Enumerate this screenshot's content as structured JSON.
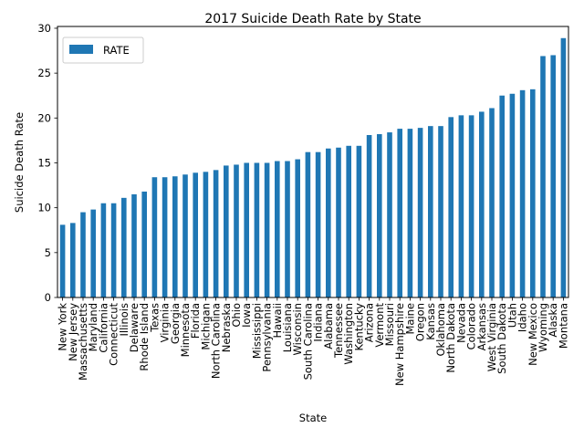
{
  "chart_data": {
    "type": "bar",
    "title": "2017 Suicide Death Rate by State",
    "xlabel": "State",
    "ylabel": "Suicide Death Rate",
    "ylim": [
      0,
      30.2
    ],
    "yticks": [
      0,
      5,
      10,
      15,
      20,
      25,
      30
    ],
    "grid": false,
    "legend_position": "upper-left",
    "bar_color": "#1f77b4",
    "series": [
      {
        "name": "RATE",
        "values": [
          8.1,
          8.3,
          9.5,
          9.8,
          10.5,
          10.5,
          11.1,
          11.5,
          11.8,
          13.4,
          13.4,
          13.5,
          13.7,
          13.9,
          14.0,
          14.2,
          14.7,
          14.8,
          15.0,
          15.0,
          15.0,
          15.2,
          15.2,
          15.4,
          16.2,
          16.2,
          16.6,
          16.7,
          16.9,
          16.9,
          18.1,
          18.2,
          18.4,
          18.8,
          18.8,
          18.9,
          19.1,
          19.1,
          20.1,
          20.3,
          20.3,
          20.7,
          21.1,
          22.5,
          22.7,
          23.1,
          23.2,
          26.9,
          27.0,
          28.9
        ]
      }
    ],
    "categories": [
      "New York",
      "New Jersey",
      "Massachusetts",
      "Maryland",
      "California",
      "Connecticut",
      "Illinois",
      "Delaware",
      "Rhode Island",
      "Texas",
      "Virginia",
      "Georgia",
      "Minnesota",
      "Florida",
      "Michigan",
      "North Carolina",
      "Nebraska",
      "Ohio",
      "Iowa",
      "Mississippi",
      "Pennsylvania",
      "Hawaii",
      "Louisiana",
      "Wisconsin",
      "South Carolina",
      "Indiana",
      "Alabama",
      "Tennessee",
      "Washington",
      "Kentucky",
      "Arizona",
      "Vermont",
      "Missouri",
      "New Hampshire",
      "Maine",
      "Oregon",
      "Kansas",
      "Oklahoma",
      "North Dakota",
      "Nevada",
      "Colorado",
      "Arkansas",
      "West Virginia",
      "South Dakota",
      "Utah",
      "Idaho",
      "New Mexico",
      "Wyoming",
      "Alaska",
      "Montana"
    ]
  }
}
